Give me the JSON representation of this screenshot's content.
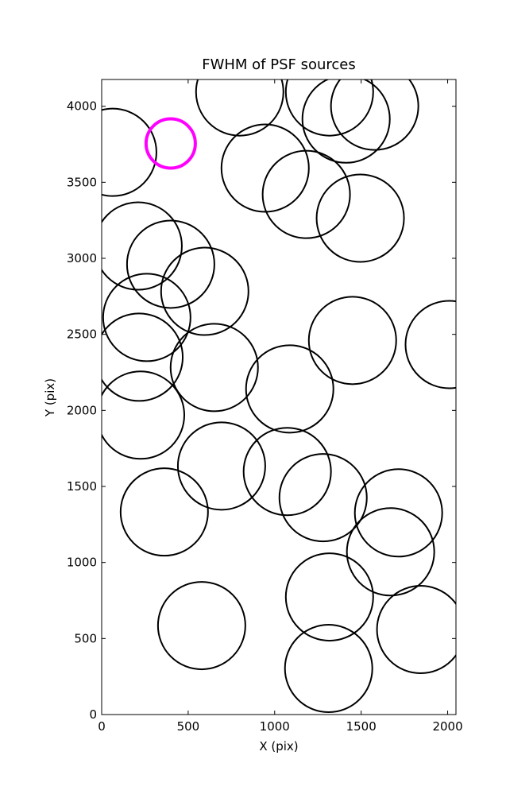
{
  "chart_data": {
    "type": "scatter",
    "title": "FWHM of PSF sources",
    "xlabel": "X (pix)",
    "ylabel": "Y (pix)",
    "xlim": [
      0,
      2048
    ],
    "ylim": [
      0,
      4176
    ],
    "xticks": [
      0,
      500,
      1000,
      1500,
      2000
    ],
    "yticks": [
      0,
      500,
      1000,
      1500,
      2000,
      2500,
      3000,
      3500,
      4000
    ],
    "series": [
      {
        "color": "#000000",
        "x": [
          64,
          798,
          1317,
          1413,
          1578,
          945,
          1183,
          1495,
          211,
          399,
          596,
          261,
          216,
          651,
          1087,
          1450,
          2009,
          225,
          693,
          1073,
          1280,
          362,
          1716,
          1670,
          1317,
          578,
          1844,
          1312
        ],
        "values": [
          3697,
          4094,
          4094,
          3916,
          4000,
          3593,
          3420,
          3264,
          3081,
          2961,
          2783,
          2611,
          2350,
          2282,
          2141,
          2460,
          2433,
          1969,
          1634,
          1598,
          1426,
          1332,
          1326,
          1070,
          773,
          585,
          559,
          303
        ]
      },
      {
        "color": "#ff00ff",
        "x": [
          399
        ],
        "values": [
          3755
        ]
      }
    ]
  }
}
